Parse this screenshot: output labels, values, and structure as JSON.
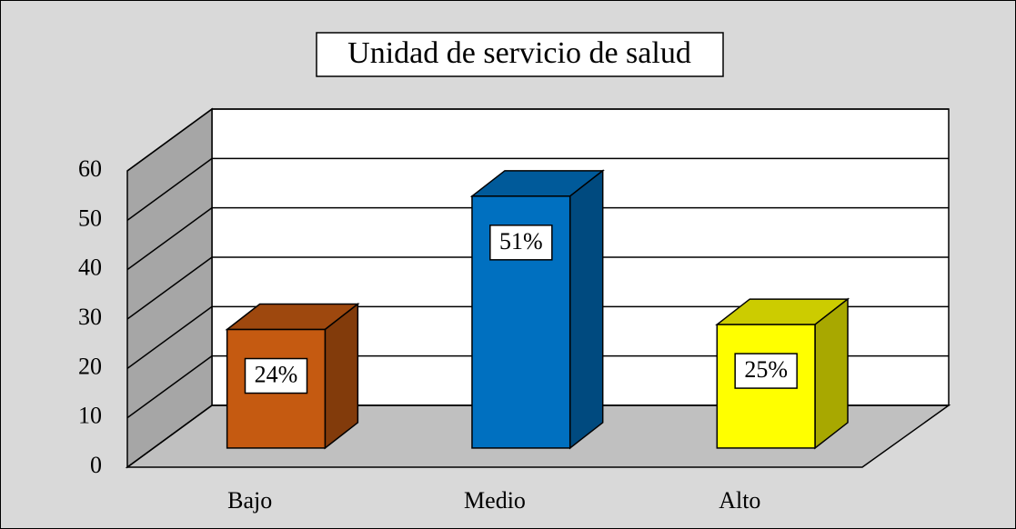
{
  "chart_data": {
    "type": "bar3d",
    "title": "Unidad de servicio de salud",
    "categories": [
      "Bajo",
      "Medio",
      "Alto"
    ],
    "values": [
      24,
      51,
      25
    ],
    "value_labels": [
      "24%",
      "51%",
      "25%"
    ],
    "colors": [
      "#c55a11",
      "#0070c0",
      "#ffff00"
    ],
    "ylim": [
      0,
      60
    ],
    "yticks": [
      0,
      10,
      20,
      30,
      40,
      50,
      60
    ],
    "grid": true
  }
}
